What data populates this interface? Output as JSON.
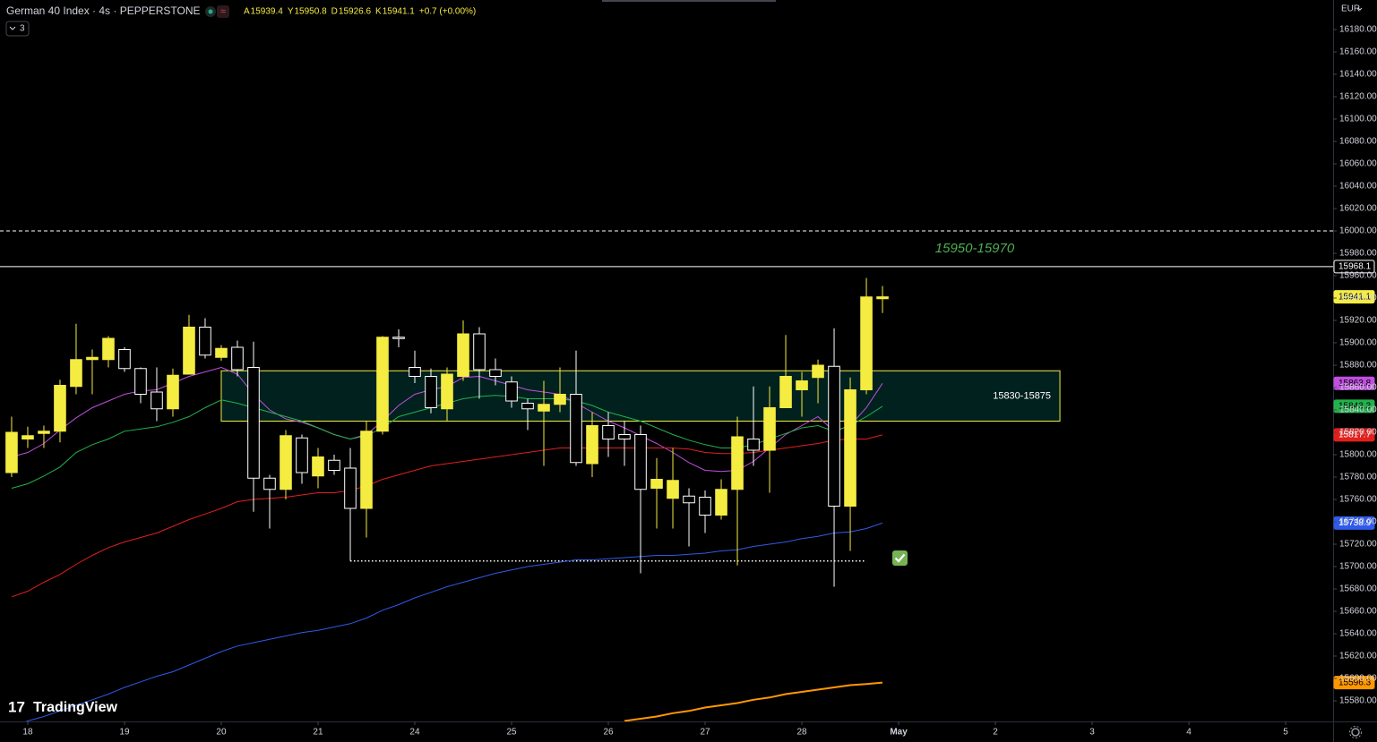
{
  "header": {
    "title": "German 40 Index · 4s · PEPPERSTONE",
    "ohlc_letters": [
      "A",
      "Y",
      "D",
      "K"
    ],
    "change": "+0.7 (+0.00%)",
    "badge": "3",
    "currency": "EUR",
    "brand": "TradingView"
  },
  "chart_data": {
    "type": "candlestick",
    "x": [
      0,
      1,
      2,
      3,
      4,
      5,
      6,
      7,
      8,
      9,
      10,
      11,
      12,
      13,
      14,
      15,
      16,
      17,
      18,
      19,
      20,
      21,
      22,
      23,
      24,
      25,
      26,
      27,
      28,
      29,
      30,
      31,
      32,
      33,
      34,
      35,
      36,
      37,
      38,
      39,
      40,
      41,
      42,
      43,
      44,
      45,
      46,
      47,
      48,
      49,
      50,
      51,
      52,
      53,
      54
    ],
    "open": [
      15784,
      15814,
      15819,
      15821,
      15861,
      15885,
      15885,
      15894,
      15877,
      15856,
      15841,
      15872,
      15914,
      15887,
      15896,
      15878,
      15779,
      15769,
      15815,
      15781,
      15795,
      15788,
      15752,
      15821,
      15905,
      15878,
      15870,
      15841,
      15870,
      15908,
      15876,
      15865,
      15846,
      15839,
      15845,
      15854,
      15792,
      15826,
      15818,
      15818,
      15770,
      15761,
      15763,
      15762,
      15746,
      15769,
      15814,
      15804,
      15842,
      15858,
      15869,
      15879,
      15754,
      15858,
      15939.4
    ],
    "high": [
      15834,
      15825,
      15826,
      15867,
      15917,
      15894,
      15906,
      15896,
      15878,
      15878,
      15877,
      15925,
      15922,
      15898,
      15902,
      15901,
      15782,
      15822,
      15818,
      15806,
      15800,
      15806,
      15830,
      15906,
      15912,
      15893,
      15877,
      15878,
      15920,
      15914,
      15886,
      15870,
      15850,
      15866,
      15878,
      15893,
      15838,
      15838,
      15830,
      15826,
      15797,
      15806,
      15770,
      15768,
      15778,
      15834,
      15861,
      15861,
      15907,
      15874,
      15885,
      15913,
      15869,
      15958,
      15950.8
    ],
    "low": [
      15780,
      15806,
      15806,
      15811,
      15854,
      15854,
      15878,
      15874,
      15846,
      15830,
      15834,
      15872,
      15886,
      15884,
      15870,
      15749,
      15734,
      15760,
      15774,
      15770,
      15782,
      15705,
      15726,
      15818,
      15896,
      15864,
      15837,
      15830,
      15866,
      15850,
      15862,
      15842,
      15822,
      15790,
      15838,
      15790,
      15780,
      15798,
      15790,
      15694,
      15734,
      15734,
      15718,
      15730,
      15742,
      15701,
      15790,
      15766,
      15842,
      15834,
      15846,
      15682,
      15714,
      15854,
      15926.6
    ],
    "close": [
      15820,
      15817,
      15821,
      15862,
      15885,
      15887,
      15904,
      15877,
      15854,
      15841,
      15871,
      15914,
      15889,
      15895,
      15876,
      15779,
      15769,
      15817,
      15784,
      15798,
      15786,
      15752,
      15821,
      15905,
      15904,
      15870,
      15842,
      15872,
      15908,
      15876,
      15870,
      15848,
      15841,
      15845,
      15854,
      15793,
      15826,
      15814,
      15814,
      15769,
      15778,
      15777,
      15757,
      15746,
      15769,
      15816,
      15804,
      15842,
      15870,
      15866,
      15880,
      15754,
      15858,
      15941,
      15941.1
    ],
    "up_color": "#f5ec42",
    "down_color": "#ffffff",
    "series": [
      {
        "color": "#c04fe0",
        "values": [
          15798,
          15802,
          15810,
          15822,
          15833,
          15842,
          15848,
          15854,
          15857,
          15858,
          15864,
          15870,
          15874,
          15878,
          15872,
          15854,
          15840,
          15832,
          15829,
          15824,
          15818,
          15814,
          15818,
          15830,
          15844,
          15854,
          15858,
          15861,
          15869,
          15870,
          15866,
          15862,
          15858,
          15856,
          15854,
          15846,
          15838,
          15830,
          15824,
          15817,
          15810,
          15802,
          15793,
          15786,
          15785,
          15786,
          15794,
          15806,
          15818,
          15826,
          15834,
          15821,
          15826,
          15842,
          15863.8
        ]
      },
      {
        "color": "#22b14c",
        "values": [
          15770,
          15774,
          15781,
          15789,
          15802,
          15809,
          15814,
          15821,
          15823,
          15825,
          15829,
          15834,
          15842,
          15849,
          15846,
          15842,
          15838,
          15834,
          15830,
          15824,
          15818,
          15814,
          15817,
          15824,
          15834,
          15838,
          15842,
          15846,
          15850,
          15852,
          15853,
          15852,
          15850,
          15850,
          15850,
          15848,
          15844,
          15838,
          15834,
          15830,
          15824,
          15818,
          15813,
          15809,
          15806,
          15806,
          15809,
          15814,
          15819,
          15824,
          15826,
          15821,
          15826,
          15834,
          15843.3
        ]
      },
      {
        "color": "#e0201c",
        "values": [
          15673,
          15678,
          15686,
          15693,
          15702,
          15710,
          15717,
          15722,
          15726,
          15730,
          15736,
          15742,
          15747,
          15752,
          15758,
          15760,
          15761,
          15762,
          15764,
          15766,
          15766,
          15768,
          15772,
          15778,
          15782,
          15786,
          15790,
          15792,
          15794,
          15796,
          15798,
          15800,
          15802,
          15804,
          15806,
          15806,
          15806,
          15806,
          15806,
          15806,
          15806,
          15806,
          15805,
          15802,
          15801,
          15801,
          15802,
          15804,
          15806,
          15808,
          15810,
          15813,
          15814,
          15814,
          15817.7
        ]
      },
      {
        "color": "#2f5be8",
        "values": [
          15557,
          15562,
          15566,
          15571,
          15576,
          15581,
          15586,
          15592,
          15597,
          15602,
          15606,
          15612,
          15618,
          15624,
          15629,
          15632,
          15635,
          15638,
          15641,
          15643,
          15646,
          15649,
          15654,
          15661,
          15666,
          15672,
          15677,
          15682,
          15686,
          15690,
          15694,
          15697,
          15700,
          15702,
          15704,
          15706,
          15706,
          15707,
          15708,
          15709,
          15710,
          15710,
          15711,
          15712,
          15714,
          15715,
          15718,
          15720,
          15722,
          15725,
          15727,
          15730,
          15731,
          15734,
          15738.9
        ]
      },
      {
        "color": "#ff9800",
        "values": [
          null,
          null,
          null,
          null,
          null,
          null,
          null,
          null,
          null,
          null,
          null,
          null,
          null,
          null,
          null,
          null,
          null,
          null,
          null,
          null,
          null,
          null,
          null,
          null,
          null,
          null,
          null,
          null,
          null,
          null,
          null,
          null,
          null,
          null,
          null,
          null,
          null,
          null,
          15562,
          15564,
          15566,
          15569,
          15571,
          15574,
          15576,
          15578,
          15581,
          15583,
          15586,
          15588,
          15590,
          15592,
          15594,
          15595,
          15596.3
        ]
      }
    ],
    "hlines": [
      {
        "value": 16000,
        "style": "dashed"
      },
      {
        "value": 15968.1,
        "style": "solid"
      }
    ],
    "zones": [
      {
        "low": 15830,
        "high": 15875,
        "from": 13,
        "to": 65,
        "label": "15830-15875"
      }
    ],
    "dotted_lines": [
      {
        "value": 15705,
        "from": 21,
        "to": 53
      }
    ],
    "annotations": [
      {
        "text": "15950-15970",
        "color": "#4caf50"
      }
    ],
    "xlim": [
      -0.72,
      81.94
    ],
    "xticks": [
      {
        "value": 1,
        "label": "18"
      },
      {
        "value": 7,
        "label": "19"
      },
      {
        "value": 13,
        "label": "20"
      },
      {
        "value": 19,
        "label": "21"
      },
      {
        "value": 25,
        "label": "24"
      },
      {
        "value": 31,
        "label": "25"
      },
      {
        "value": 37,
        "label": "26"
      },
      {
        "value": 43,
        "label": "27"
      },
      {
        "value": 49,
        "label": "28"
      },
      {
        "value": 55,
        "label": "May"
      },
      {
        "value": 61,
        "label": "2"
      },
      {
        "value": 67,
        "label": "3"
      },
      {
        "value": 73,
        "label": "4"
      },
      {
        "value": 79,
        "label": "5"
      }
    ],
    "ylim": [
      15561.6,
      16206.4
    ],
    "yticks": [
      {
        "value": 15580,
        "label": "15580.00"
      },
      {
        "value": 15600,
        "label": "15600.00"
      },
      {
        "value": 15620,
        "label": "15620.00"
      },
      {
        "value": 15640,
        "label": "15640.00"
      },
      {
        "value": 15660,
        "label": "15660.00"
      },
      {
        "value": 15680,
        "label": "15680.00"
      },
      {
        "value": 15700,
        "label": "15700.00"
      },
      {
        "value": 15720,
        "label": "15720.00"
      },
      {
        "value": 15740,
        "label": "15740.00"
      },
      {
        "value": 15760,
        "label": "15760.00"
      },
      {
        "value": 15780,
        "label": "15780.00"
      },
      {
        "value": 15800,
        "label": "15800.00"
      },
      {
        "value": 15820,
        "label": "15820.00"
      },
      {
        "value": 15840,
        "label": "15840.00"
      },
      {
        "value": 15860,
        "label": "15860.00"
      },
      {
        "value": 15880,
        "label": "15880.00"
      },
      {
        "value": 15900,
        "label": "15900.00"
      },
      {
        "value": 15920,
        "label": "15920.00"
      },
      {
        "value": 15940,
        "label": "15940.00"
      },
      {
        "value": 15960,
        "label": "15960.00"
      },
      {
        "value": 15980,
        "label": "15980.00"
      },
      {
        "value": 16000,
        "label": "16000.00"
      },
      {
        "value": 16020,
        "label": "16020.00"
      },
      {
        "value": 16040,
        "label": "16040.00"
      },
      {
        "value": 16060,
        "label": "16060.00"
      },
      {
        "value": 16080,
        "label": "16080.00"
      },
      {
        "value": 16100,
        "label": "16100.00"
      },
      {
        "value": 16120,
        "label": "16120.00"
      },
      {
        "value": 16140,
        "label": "16140.00"
      },
      {
        "value": 16160,
        "label": "16160.00"
      },
      {
        "value": 16180,
        "label": "16180.00"
      }
    ]
  }
}
